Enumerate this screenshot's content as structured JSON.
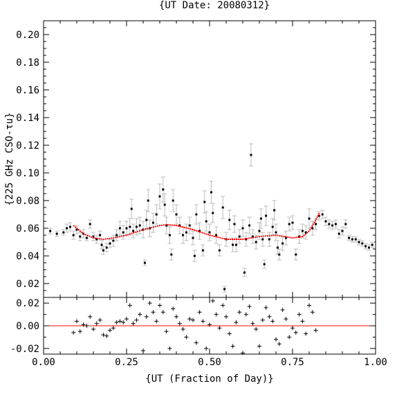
{
  "chart_data": [
    {
      "type": "scatter",
      "title": "{UT Date: 20080312}",
      "xlabel": "{UT (Fraction of Day)}",
      "ylabel": "{225 GHz CSO-τu}",
      "xlim": [
        0.0,
        1.0
      ],
      "ylim": [
        0.01,
        0.21
      ],
      "x_ticks": [
        "0.00",
        "0.25",
        "0.50",
        "0.75",
        "1.00"
      ],
      "y_ticks": [
        "0.02",
        "0.04",
        "0.06",
        "0.08",
        "0.10",
        "0.12",
        "0.14",
        "0.16",
        "0.18",
        "0.20"
      ],
      "grid": false,
      "colors": {
        "points": "#000000",
        "errorbars": "#bbbbbb",
        "fit": "#ff0000"
      },
      "series": [
        {
          "points": [
            {
              "x": 0.02,
              "y": 0.058,
              "err": 0.002
            },
            {
              "x": 0.04,
              "y": 0.056,
              "err": 0.002
            },
            {
              "x": 0.06,
              "y": 0.057,
              "err": 0.002
            },
            {
              "x": 0.07,
              "y": 0.06,
              "err": 0.003
            },
            {
              "x": 0.08,
              "y": 0.061,
              "err": 0.003
            },
            {
              "x": 0.09,
              "y": 0.055,
              "err": 0.003
            },
            {
              "x": 0.1,
              "y": 0.059,
              "err": 0.003
            },
            {
              "x": 0.11,
              "y": 0.054,
              "err": 0.003
            },
            {
              "x": 0.12,
              "y": 0.056,
              "err": 0.003
            },
            {
              "x": 0.13,
              "y": 0.053,
              "err": 0.002
            },
            {
              "x": 0.14,
              "y": 0.063,
              "err": 0.003
            },
            {
              "x": 0.15,
              "y": 0.054,
              "err": 0.003
            },
            {
              "x": 0.16,
              "y": 0.052,
              "err": 0.003
            },
            {
              "x": 0.17,
              "y": 0.055,
              "err": 0.003
            },
            {
              "x": 0.175,
              "y": 0.048,
              "err": 0.003
            },
            {
              "x": 0.18,
              "y": 0.044,
              "err": 0.003
            },
            {
              "x": 0.19,
              "y": 0.046,
              "err": 0.003
            },
            {
              "x": 0.2,
              "y": 0.049,
              "err": 0.003
            },
            {
              "x": 0.21,
              "y": 0.051,
              "err": 0.004
            },
            {
              "x": 0.22,
              "y": 0.055,
              "err": 0.004
            },
            {
              "x": 0.23,
              "y": 0.06,
              "err": 0.005
            },
            {
              "x": 0.24,
              "y": 0.057,
              "err": 0.005
            },
            {
              "x": 0.25,
              "y": 0.06,
              "err": 0.005
            },
            {
              "x": 0.26,
              "y": 0.061,
              "err": 0.006
            },
            {
              "x": 0.265,
              "y": 0.074,
              "err": 0.007
            },
            {
              "x": 0.27,
              "y": 0.058,
              "err": 0.005
            },
            {
              "x": 0.28,
              "y": 0.061,
              "err": 0.006
            },
            {
              "x": 0.29,
              "y": 0.062,
              "err": 0.006
            },
            {
              "x": 0.3,
              "y": 0.059,
              "err": 0.006
            },
            {
              "x": 0.305,
              "y": 0.035,
              "err": 0.002
            },
            {
              "x": 0.31,
              "y": 0.066,
              "err": 0.007
            },
            {
              "x": 0.315,
              "y": 0.08,
              "err": 0.008
            },
            {
              "x": 0.32,
              "y": 0.06,
              "err": 0.006
            },
            {
              "x": 0.33,
              "y": 0.064,
              "err": 0.007
            },
            {
              "x": 0.34,
              "y": 0.07,
              "err": 0.007
            },
            {
              "x": 0.35,
              "y": 0.083,
              "err": 0.009
            },
            {
              "x": 0.36,
              "y": 0.088,
              "err": 0.009
            },
            {
              "x": 0.365,
              "y": 0.077,
              "err": 0.008
            },
            {
              "x": 0.37,
              "y": 0.062,
              "err": 0.006
            },
            {
              "x": 0.38,
              "y": 0.055,
              "err": 0.006
            },
            {
              "x": 0.385,
              "y": 0.041,
              "err": 0.004
            },
            {
              "x": 0.39,
              "y": 0.08,
              "err": 0.008
            },
            {
              "x": 0.4,
              "y": 0.07,
              "err": 0.007
            },
            {
              "x": 0.41,
              "y": 0.062,
              "err": 0.006
            },
            {
              "x": 0.42,
              "y": 0.055,
              "err": 0.006
            },
            {
              "x": 0.43,
              "y": 0.057,
              "err": 0.006
            },
            {
              "x": 0.44,
              "y": 0.062,
              "err": 0.006
            },
            {
              "x": 0.45,
              "y": 0.053,
              "err": 0.005
            },
            {
              "x": 0.455,
              "y": 0.04,
              "err": 0.004
            },
            {
              "x": 0.46,
              "y": 0.07,
              "err": 0.007
            },
            {
              "x": 0.47,
              "y": 0.058,
              "err": 0.006
            },
            {
              "x": 0.48,
              "y": 0.044,
              "err": 0.004
            },
            {
              "x": 0.485,
              "y": 0.079,
              "err": 0.008
            },
            {
              "x": 0.49,
              "y": 0.065,
              "err": 0.007
            },
            {
              "x": 0.5,
              "y": 0.057,
              "err": 0.006
            },
            {
              "x": 0.505,
              "y": 0.086,
              "err": 0.008
            },
            {
              "x": 0.51,
              "y": 0.071,
              "err": 0.007
            },
            {
              "x": 0.52,
              "y": 0.055,
              "err": 0.006
            },
            {
              "x": 0.53,
              "y": 0.044,
              "err": 0.004
            },
            {
              "x": 0.54,
              "y": 0.075,
              "err": 0.008
            },
            {
              "x": 0.545,
              "y": 0.016,
              "err": 0.002
            },
            {
              "x": 0.55,
              "y": 0.052,
              "err": 0.005
            },
            {
              "x": 0.56,
              "y": 0.066,
              "err": 0.007
            },
            {
              "x": 0.57,
              "y": 0.048,
              "err": 0.005
            },
            {
              "x": 0.575,
              "y": 0.063,
              "err": 0.006
            },
            {
              "x": 0.58,
              "y": 0.048,
              "err": 0.005
            },
            {
              "x": 0.59,
              "y": 0.054,
              "err": 0.005
            },
            {
              "x": 0.6,
              "y": 0.06,
              "err": 0.006
            },
            {
              "x": 0.605,
              "y": 0.028,
              "err": 0.003
            },
            {
              "x": 0.61,
              "y": 0.052,
              "err": 0.005
            },
            {
              "x": 0.62,
              "y": 0.062,
              "err": 0.006
            },
            {
              "x": 0.625,
              "y": 0.113,
              "err": 0.008
            },
            {
              "x": 0.63,
              "y": 0.054,
              "err": 0.005
            },
            {
              "x": 0.64,
              "y": 0.05,
              "err": 0.005
            },
            {
              "x": 0.65,
              "y": 0.058,
              "err": 0.006
            },
            {
              "x": 0.655,
              "y": 0.067,
              "err": 0.007
            },
            {
              "x": 0.66,
              "y": 0.052,
              "err": 0.005
            },
            {
              "x": 0.665,
              "y": 0.034,
              "err": 0.003
            },
            {
              "x": 0.67,
              "y": 0.069,
              "err": 0.007
            },
            {
              "x": 0.68,
              "y": 0.052,
              "err": 0.005
            },
            {
              "x": 0.69,
              "y": 0.061,
              "err": 0.006
            },
            {
              "x": 0.695,
              "y": 0.073,
              "err": 0.007
            },
            {
              "x": 0.7,
              "y": 0.057,
              "err": 0.006
            },
            {
              "x": 0.705,
              "y": 0.046,
              "err": 0.005
            },
            {
              "x": 0.71,
              "y": 0.041,
              "err": 0.004
            },
            {
              "x": 0.72,
              "y": 0.049,
              "err": 0.005
            },
            {
              "x": 0.73,
              "y": 0.053,
              "err": 0.005
            },
            {
              "x": 0.74,
              "y": 0.063,
              "err": 0.005
            },
            {
              "x": 0.75,
              "y": 0.064,
              "err": 0.005
            },
            {
              "x": 0.76,
              "y": 0.041,
              "err": 0.004
            },
            {
              "x": 0.77,
              "y": 0.054,
              "err": 0.005
            },
            {
              "x": 0.78,
              "y": 0.058,
              "err": 0.005
            },
            {
              "x": 0.79,
              "y": 0.057,
              "err": 0.005
            },
            {
              "x": 0.8,
              "y": 0.067,
              "err": 0.007
            },
            {
              "x": 0.81,
              "y": 0.06,
              "err": 0.005
            },
            {
              "x": 0.82,
              "y": 0.063,
              "err": 0.004
            },
            {
              "x": 0.83,
              "y": 0.069,
              "err": 0.003
            },
            {
              "x": 0.84,
              "y": 0.07,
              "err": 0.003
            },
            {
              "x": 0.85,
              "y": 0.065,
              "err": 0.003
            },
            {
              "x": 0.86,
              "y": 0.063,
              "err": 0.003
            },
            {
              "x": 0.87,
              "y": 0.062,
              "err": 0.003
            },
            {
              "x": 0.88,
              "y": 0.063,
              "err": 0.003
            },
            {
              "x": 0.89,
              "y": 0.056,
              "err": 0.003
            },
            {
              "x": 0.9,
              "y": 0.058,
              "err": 0.003
            },
            {
              "x": 0.91,
              "y": 0.063,
              "err": 0.003
            },
            {
              "x": 0.92,
              "y": 0.053,
              "err": 0.002
            },
            {
              "x": 0.93,
              "y": 0.052,
              "err": 0.002
            },
            {
              "x": 0.94,
              "y": 0.052,
              "err": 0.002
            },
            {
              "x": 0.95,
              "y": 0.05,
              "err": 0.002
            },
            {
              "x": 0.96,
              "y": 0.049,
              "err": 0.002
            },
            {
              "x": 0.97,
              "y": 0.047,
              "err": 0.002
            },
            {
              "x": 0.98,
              "y": 0.046,
              "err": 0.002
            },
            {
              "x": 0.99,
              "y": 0.048,
              "err": 0.002
            }
          ]
        }
      ],
      "fit": {
        "x": [
          0.09,
          0.12,
          0.15,
          0.18,
          0.21,
          0.25,
          0.3,
          0.35,
          0.37,
          0.4,
          0.45,
          0.5,
          0.55,
          0.6,
          0.65,
          0.7,
          0.75,
          0.78,
          0.8,
          0.82,
          0.83
        ],
        "y": [
          0.062,
          0.056,
          0.053,
          0.052,
          0.053,
          0.055,
          0.059,
          0.062,
          0.0625,
          0.062,
          0.059,
          0.055,
          0.052,
          0.052,
          0.054,
          0.055,
          0.053,
          0.054,
          0.058,
          0.066,
          0.071
        ]
      }
    },
    {
      "type": "scatter",
      "title": "",
      "xlabel": "",
      "ylabel": "",
      "xlim": [
        0.0,
        1.0
      ],
      "ylim": [
        -0.025,
        0.025
      ],
      "y_ticks": [
        "0.02",
        "0.00",
        "-0.02"
      ],
      "zero_line": 0.0,
      "colors": {
        "points": "#000000",
        "zero_line": "#ff0000"
      },
      "series": [
        {
          "x": [
            0.09,
            0.1,
            0.11,
            0.12,
            0.13,
            0.14,
            0.15,
            0.16,
            0.17,
            0.18,
            0.19,
            0.2,
            0.21,
            0.22,
            0.23,
            0.24,
            0.25,
            0.26,
            0.27,
            0.28,
            0.29,
            0.3,
            0.31,
            0.32,
            0.33,
            0.34,
            0.35,
            0.36,
            0.37,
            0.38,
            0.39,
            0.4,
            0.41,
            0.42,
            0.43,
            0.44,
            0.45,
            0.46,
            0.47,
            0.48,
            0.49,
            0.5,
            0.51,
            0.52,
            0.53,
            0.54,
            0.55,
            0.56,
            0.57,
            0.58,
            0.59,
            0.6,
            0.61,
            0.62,
            0.63,
            0.64,
            0.65,
            0.66,
            0.67,
            0.68,
            0.69,
            0.7,
            0.71,
            0.72,
            0.73,
            0.74,
            0.75,
            0.76,
            0.77,
            0.78,
            0.79,
            0.8,
            0.81,
            0.82
          ],
          "y": [
            -0.006,
            0.004,
            -0.005,
            0.001,
            0.0,
            0.008,
            -0.003,
            0.002,
            0.005,
            -0.008,
            -0.009,
            -0.004,
            -0.002,
            0.003,
            0.004,
            0.003,
            0.006,
            0.018,
            0.002,
            0.005,
            0.01,
            -0.022,
            0.008,
            0.02,
            0.012,
            0.004,
            0.018,
            0.012,
            -0.005,
            -0.02,
            0.015,
            0.008,
            0.002,
            -0.003,
            -0.01,
            0.006,
            0.005,
            -0.015,
            0.012,
            0.004,
            -0.02,
            0.001,
            0.022,
            0.01,
            -0.002,
            0.018,
            0.008,
            -0.007,
            -0.018,
            0.003,
            0.012,
            -0.024,
            0.01,
            0.017,
            0.002,
            -0.003,
            -0.018,
            0.005,
            0.016,
            0.008,
            0.004,
            -0.012,
            -0.016,
            0.014,
            0.006,
            -0.01,
            -0.002,
            -0.006,
            0.01,
            0.004,
            -0.007,
            0.018,
            0.012,
            -0.004
          ]
        }
      ]
    }
  ],
  "shared_x_ticks": [
    "0.00",
    "0.25",
    "0.50",
    "0.75",
    "1.00"
  ]
}
